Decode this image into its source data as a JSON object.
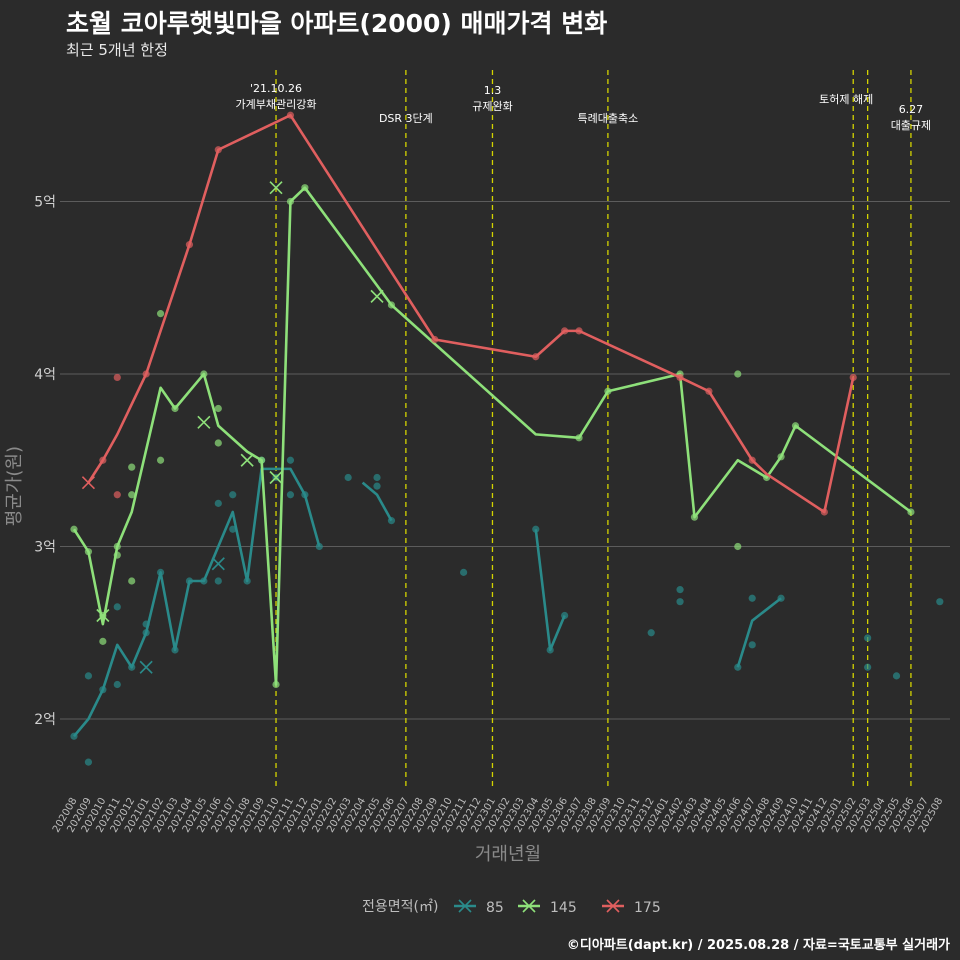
{
  "header": {
    "title": "초월 코아루햇빛마을 아파트(2000) 매매가격 변화",
    "subtitle": "최근 5개년 한정"
  },
  "footer": {
    "caption": "©디아파트(dapt.kr) / 2025.08.28 / 자료=국토교통부 실거래가"
  },
  "colors": {
    "background": "#2b2b2b",
    "grid": "#5c5c5c",
    "event_line": "#d4d400"
  },
  "chart_data": {
    "type": "line",
    "xlabel": "거래년월",
    "ylabel": "평균가(원)",
    "categories": [
      "202008",
      "202009",
      "202010",
      "202011",
      "202012",
      "202101",
      "202102",
      "202103",
      "202104",
      "202105",
      "202106",
      "202107",
      "202108",
      "202109",
      "202110",
      "202111",
      "202112",
      "202201",
      "202202",
      "202203",
      "202204",
      "202205",
      "202206",
      "202207",
      "202208",
      "202209",
      "202210",
      "202211",
      "202212",
      "202301",
      "202302",
      "202303",
      "202304",
      "202305",
      "202306",
      "202307",
      "202308",
      "202309",
      "202310",
      "202311",
      "202312",
      "202401",
      "202402",
      "202403",
      "202404",
      "202405",
      "202406",
      "202407",
      "202408",
      "202409",
      "202410",
      "202411",
      "202412",
      "202501",
      "202502",
      "202503",
      "202504",
      "202505",
      "202506",
      "202507",
      "202508"
    ],
    "y_ticks": [
      {
        "value": 2,
        "label": "2억"
      },
      {
        "value": 3,
        "label": "3억"
      },
      {
        "value": 4,
        "label": "4억"
      },
      {
        "value": 5,
        "label": "5억"
      }
    ],
    "ylim": [
      1.6,
      5.7
    ],
    "grid": true,
    "legend": {
      "title": "전용면적(㎡)",
      "position": "bottom"
    },
    "events": [
      {
        "x": "202110",
        "lines": [
          "'21.10.26",
          "가계부채관리강화"
        ]
      },
      {
        "x": "202207",
        "lines": [
          "DSR 3단계"
        ]
      },
      {
        "x": "202301",
        "lines": [
          "1.3",
          "규제완화"
        ]
      },
      {
        "x": "202309",
        "lines": [
          "특례대출축소"
        ]
      },
      {
        "x": "202502",
        "lines": [
          "토허제 해제"
        ]
      },
      {
        "x": "202503",
        "lines": []
      },
      {
        "x": "202506",
        "lines": [
          "6.27",
          "대출규제"
        ]
      }
    ],
    "series": [
      {
        "name": "85",
        "color": "#2a8a8a",
        "line": [
          [
            "202008",
            1.9
          ],
          [
            "202009",
            2.0
          ],
          [
            "202010",
            2.17
          ],
          [
            "202011",
            2.43
          ],
          [
            "202012",
            2.3
          ],
          [
            "202101",
            2.5
          ],
          [
            "202102",
            2.85
          ],
          [
            "202103",
            2.4
          ],
          [
            "202104",
            2.8
          ],
          [
            "202105",
            2.8
          ],
          [
            "202106",
            3.0
          ],
          [
            "202107",
            3.2
          ],
          [
            "202108",
            2.8
          ],
          [
            "202109",
            3.45
          ],
          [
            "202110",
            3.45
          ],
          [
            "202111",
            3.45
          ],
          [
            "202112",
            3.3
          ],
          [
            "202201",
            3.0
          ],
          null,
          [
            "202204",
            3.37
          ],
          [
            "202205",
            3.3
          ],
          [
            "202206",
            3.15
          ],
          null,
          [
            "202304",
            3.1
          ],
          [
            "202305",
            2.4
          ],
          [
            "202306",
            2.6
          ],
          null,
          [
            "202406",
            2.3
          ],
          [
            "202407",
            2.57
          ],
          [
            "202409",
            2.7
          ]
        ],
        "points": [
          [
            "202008",
            1.9
          ],
          [
            "202009",
            2.25
          ],
          [
            "202009",
            1.75
          ],
          [
            "202010",
            2.17
          ],
          [
            "202011",
            2.65
          ],
          [
            "202011",
            2.2
          ],
          [
            "202012",
            2.3
          ],
          [
            "202101",
            2.55
          ],
          [
            "202101",
            2.5
          ],
          [
            "202102",
            2.85
          ],
          [
            "202103",
            2.4
          ],
          [
            "202104",
            2.8
          ],
          [
            "202105",
            2.8
          ],
          [
            "202106",
            3.25
          ],
          [
            "202106",
            2.8
          ],
          [
            "202107",
            3.1
          ],
          [
            "202107",
            3.3
          ],
          [
            "202108",
            2.8
          ],
          [
            "202109",
            3.5
          ],
          [
            "202110",
            3.4
          ],
          [
            "202111",
            3.5
          ],
          [
            "202111",
            3.3
          ],
          [
            "202112",
            3.3
          ],
          [
            "202201",
            3.0
          ],
          [
            "202203",
            3.4
          ],
          [
            "202205",
            3.4
          ],
          [
            "202205",
            3.35
          ],
          [
            "202206",
            3.15
          ],
          [
            "202211",
            2.85
          ],
          [
            "202304",
            3.1
          ],
          [
            "202305",
            2.4
          ],
          [
            "202306",
            2.6
          ],
          [
            "202312",
            2.5
          ],
          [
            "202402",
            2.75
          ],
          [
            "202402",
            2.68
          ],
          [
            "202406",
            2.3
          ],
          [
            "202407",
            2.7
          ],
          [
            "202407",
            2.43
          ],
          [
            "202409",
            2.7
          ],
          [
            "202503",
            2.47
          ],
          [
            "202503",
            2.3
          ],
          [
            "202505",
            2.25
          ],
          [
            "202508",
            2.68
          ]
        ],
        "crosses": [
          [
            "202101",
            2.3
          ],
          [
            "202106",
            2.9
          ]
        ]
      },
      {
        "name": "145",
        "color": "#8ee07a",
        "line": [
          [
            "202008",
            3.1
          ],
          [
            "202009",
            2.97
          ],
          [
            "202010",
            2.55
          ],
          [
            "202011",
            3.0
          ],
          [
            "202012",
            3.2
          ],
          [
            "202102",
            3.92
          ],
          [
            "202103",
            3.8
          ],
          [
            "202105",
            4.0
          ],
          [
            "202106",
            3.7
          ],
          [
            "202108",
            3.55
          ],
          [
            "202109",
            3.5
          ],
          [
            "202110",
            2.2
          ],
          [
            "202111",
            5.0
          ],
          [
            "202112",
            5.08
          ],
          [
            "202206",
            4.4
          ],
          [
            "202304",
            3.65
          ],
          [
            "202307",
            3.63
          ],
          [
            "202309",
            3.9
          ],
          [
            "202402",
            4.0
          ],
          [
            "202403",
            3.17
          ],
          [
            "202406",
            3.5
          ],
          [
            "202408",
            3.4
          ],
          [
            "202409",
            3.52
          ],
          [
            "202410",
            3.7
          ],
          [
            "202506",
            3.2
          ]
        ],
        "points": [
          [
            "202008",
            3.1
          ],
          [
            "202009",
            2.97
          ],
          [
            "202010",
            2.6
          ],
          [
            "202010",
            2.45
          ],
          [
            "202011",
            3.0
          ],
          [
            "202011",
            2.95
          ],
          [
            "202012",
            3.46
          ],
          [
            "202012",
            3.3
          ],
          [
            "202012",
            2.8
          ],
          [
            "202102",
            4.35
          ],
          [
            "202102",
            3.5
          ],
          [
            "202103",
            3.8
          ],
          [
            "202105",
            4.0
          ],
          [
            "202106",
            3.8
          ],
          [
            "202106",
            3.6
          ],
          [
            "202109",
            3.5
          ],
          [
            "202110",
            2.2
          ],
          [
            "202111",
            5.0
          ],
          [
            "202112",
            5.08
          ],
          [
            "202206",
            4.4
          ],
          [
            "202307",
            3.63
          ],
          [
            "202309",
            3.9
          ],
          [
            "202402",
            4.0
          ],
          [
            "202403",
            3.17
          ],
          [
            "202406",
            4.0
          ],
          [
            "202406",
            3.0
          ],
          [
            "202408",
            3.4
          ],
          [
            "202409",
            3.52
          ],
          [
            "202410",
            3.7
          ],
          [
            "202506",
            3.2
          ]
        ],
        "crosses": [
          [
            "202010",
            2.6
          ],
          [
            "202105",
            3.72
          ],
          [
            "202108",
            3.5
          ],
          [
            "202110",
            5.08
          ],
          [
            "202110",
            3.4
          ],
          [
            "202205",
            4.45
          ]
        ]
      },
      {
        "name": "175",
        "color": "#e05f5f",
        "line": [
          [
            "202009",
            3.37
          ],
          [
            "202010",
            3.5
          ],
          [
            "202011",
            3.65
          ],
          [
            "202101",
            4.0
          ],
          [
            "202104",
            4.75
          ],
          [
            "202106",
            5.3
          ],
          [
            "202111",
            5.5
          ],
          [
            "202209",
            4.2
          ],
          [
            "202304",
            4.1
          ],
          [
            "202306",
            4.25
          ],
          [
            "202307",
            4.25
          ],
          [
            "202402",
            3.98
          ],
          [
            "202404",
            3.9
          ],
          [
            "202407",
            3.5
          ],
          [
            "202408",
            3.42
          ],
          [
            "202412",
            3.2
          ],
          [
            "202502",
            3.98
          ]
        ],
        "points": [
          [
            "202010",
            3.5
          ],
          [
            "202011",
            3.98
          ],
          [
            "202011",
            3.3
          ],
          [
            "202101",
            4.0
          ],
          [
            "202104",
            4.75
          ],
          [
            "202106",
            5.3
          ],
          [
            "202111",
            5.5
          ],
          [
            "202209",
            4.2
          ],
          [
            "202304",
            4.1
          ],
          [
            "202306",
            4.25
          ],
          [
            "202307",
            4.25
          ],
          [
            "202402",
            3.98
          ],
          [
            "202404",
            3.9
          ],
          [
            "202407",
            3.5
          ],
          [
            "202412",
            3.2
          ],
          [
            "202502",
            3.98
          ]
        ],
        "crosses": [
          [
            "202009",
            3.37
          ]
        ]
      }
    ]
  }
}
